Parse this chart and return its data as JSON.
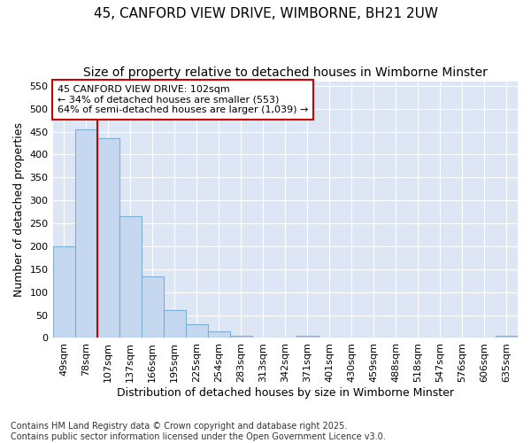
{
  "title": "45, CANFORD VIEW DRIVE, WIMBORNE, BH21 2UW",
  "subtitle": "Size of property relative to detached houses in Wimborne Minster",
  "xlabel": "Distribution of detached houses by size in Wimborne Minster",
  "ylabel": "Number of detached properties",
  "bins": [
    "49sqm",
    "78sqm",
    "107sqm",
    "137sqm",
    "166sqm",
    "195sqm",
    "225sqm",
    "254sqm",
    "283sqm",
    "313sqm",
    "342sqm",
    "371sqm",
    "401sqm",
    "430sqm",
    "459sqm",
    "488sqm",
    "518sqm",
    "547sqm",
    "576sqm",
    "606sqm",
    "635sqm"
  ],
  "values": [
    200,
    455,
    435,
    265,
    135,
    60,
    30,
    15,
    5,
    0,
    0,
    5,
    0,
    0,
    0,
    0,
    0,
    0,
    0,
    0,
    5
  ],
  "bar_color": "#c5d8f0",
  "bar_edge_color": "#7bafd4",
  "red_line_x": 1.5,
  "annotation_text": "45 CANFORD VIEW DRIVE: 102sqm\n← 34% of detached houses are smaller (553)\n64% of semi-detached houses are larger (1,039) →",
  "annotation_box_color": "#ffffff",
  "annotation_box_edge": "#cc0000",
  "ylim": [
    0,
    560
  ],
  "yticks": [
    0,
    50,
    100,
    150,
    200,
    250,
    300,
    350,
    400,
    450,
    500,
    550
  ],
  "plot_bg_color": "#dce6f5",
  "fig_bg_color": "#ffffff",
  "grid_color": "#ffffff",
  "footnote": "Contains HM Land Registry data © Crown copyright and database right 2025.\nContains public sector information licensed under the Open Government Licence v3.0.",
  "title_fontsize": 11,
  "subtitle_fontsize": 10,
  "tick_fontsize": 8,
  "ylabel_fontsize": 9,
  "xlabel_fontsize": 9,
  "footnote_fontsize": 7
}
